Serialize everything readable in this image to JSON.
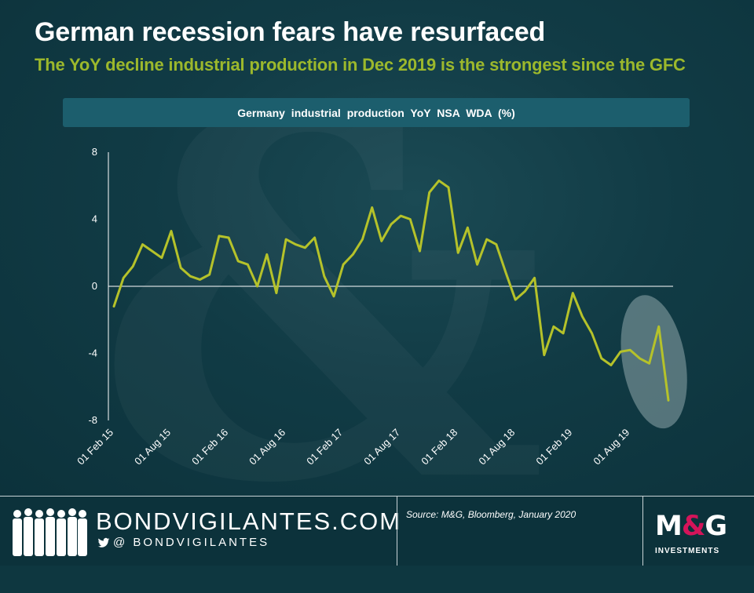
{
  "title": "German recession fears have resurfaced",
  "subtitle": "The YoY decline industrial production in Dec 2019 is the strongest since the GFC",
  "colors": {
    "line": "#b5c22a",
    "subtitle": "#9cb82c",
    "banner": "#1c5e6d",
    "highlight": "#8fa7ab"
  },
  "chart_data": {
    "type": "line",
    "title": "Germany  industrial  production  YoY  NSA  WDA  (%)",
    "xlabel": "",
    "ylabel": "",
    "ylim": [
      -8,
      8
    ],
    "yticks": [
      8,
      4,
      0,
      -4,
      -8
    ],
    "xticks": [
      "01 Feb 15",
      "01 Aug 15",
      "01 Feb 16",
      "01 Aug 16",
      "01 Feb 17",
      "01 Aug 17",
      "01 Feb 18",
      "01 Aug 18",
      "01 Feb 19",
      "01 Aug 19"
    ],
    "x_start": "2015-02",
    "x_end": "2019-12",
    "series": [
      {
        "name": "Germany industrial production YoY NSA WDA (%)",
        "values": [
          -1.2,
          0.5,
          1.2,
          2.5,
          2.1,
          1.7,
          3.3,
          1.1,
          0.6,
          0.4,
          0.7,
          3.0,
          2.9,
          1.5,
          1.3,
          0.0,
          1.9,
          -0.4,
          2.8,
          2.5,
          2.3,
          2.9,
          0.6,
          -0.6,
          1.3,
          1.9,
          2.8,
          4.7,
          2.7,
          3.7,
          4.2,
          4.0,
          2.1,
          5.6,
          6.3,
          5.9,
          2.0,
          3.5,
          1.3,
          2.8,
          2.5,
          0.8,
          -0.8,
          -0.3,
          0.5,
          -4.1,
          -2.4,
          -2.8,
          -0.4,
          -1.8,
          -2.8,
          -4.3,
          -4.7,
          -3.9,
          -3.8,
          -4.3,
          -4.6,
          -2.4,
          -6.8
        ]
      }
    ],
    "highlight": {
      "from": "2019-08",
      "to": "2019-12",
      "label": ""
    }
  },
  "footer": {
    "brand": "BONDVIGILANTES.COM",
    "twitter_handle": "@ BONDVIGILANTES",
    "source": "Source: M&G, Bloomberg, January 2020",
    "logo_m": "M",
    "logo_amp": "&",
    "logo_g": "G",
    "logo_sub": "INVESTMENTS"
  }
}
